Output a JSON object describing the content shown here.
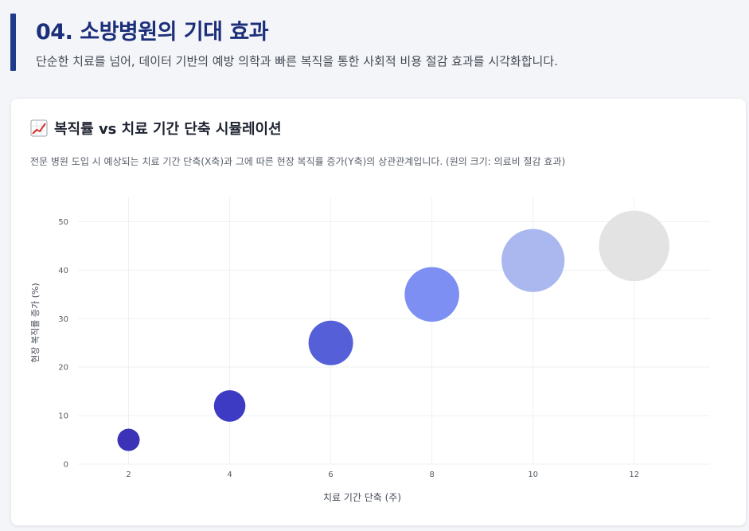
{
  "header": {
    "title": "04. 소방병원의 기대 효과",
    "subtitle": "단순한 치료를 넘어, 데이터 기반의 예방 의학과 빠른 복직을 통한 사회적 비용 절감 효과를 시각화합니다."
  },
  "card": {
    "title": "복직률 vs 치료 기간 단축 시뮬레이션",
    "icon": "chart-increasing-icon",
    "description": "전문 병원 도입 시 예상되는 치료 기간 단축(X축)과 그에 따른 현장 복직률 증가(Y축)의 상관관계입니다. (원의 크기: 의료비 절감 효과)"
  },
  "colors": {
    "accent": "#1f3a8a",
    "title": "#1c2f7a"
  },
  "chart_data": {
    "type": "scatter",
    "variant": "bubble",
    "xlabel": "치료 기간 단축 (주)",
    "ylabel": "현장 복직률 증가 (%)",
    "xlim": [
      1,
      13.5
    ],
    "ylim": [
      0,
      55
    ],
    "x_ticks": [
      2,
      4,
      6,
      8,
      10,
      12
    ],
    "y_ticks": [
      0,
      10,
      20,
      30,
      40,
      50
    ],
    "grid": true,
    "points": [
      {
        "x": 2,
        "y": 5,
        "size": 1,
        "color": "#3b32b8"
      },
      {
        "x": 4,
        "y": 12,
        "size": 2,
        "color": "#3d3bc4"
      },
      {
        "x": 6,
        "y": 25,
        "size": 4,
        "color": "#5560d8"
      },
      {
        "x": 8,
        "y": 35,
        "size": 6,
        "color": "#7d8ff2"
      },
      {
        "x": 10,
        "y": 42,
        "size": 8,
        "color": "#aab8ef"
      },
      {
        "x": 12,
        "y": 45,
        "size": 10,
        "color": "#e3e3e3"
      }
    ]
  }
}
